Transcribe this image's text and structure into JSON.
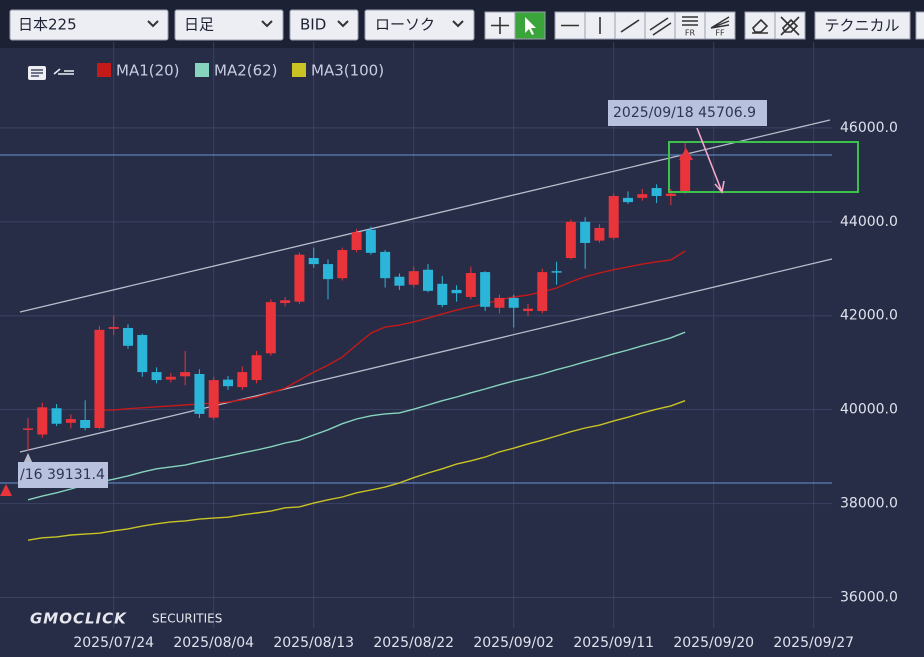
{
  "toolbar": {
    "symbol": "日本225",
    "period": "日足",
    "side": "BID",
    "chart_type": "ローソク",
    "fr": "FR",
    "ff": "FF",
    "technical": "テクニカル"
  },
  "watermark": {
    "brand": "GMOCLICK",
    "sub": "SECURITIES"
  },
  "chart_data": {
    "type": "candlestick",
    "categories": [
      "",
      "",
      "",
      "",
      "",
      "",
      "2025/07/24",
      "",
      "",
      "",
      "",
      "",
      "",
      "2025/08/04",
      "",
      "",
      "",
      "",
      "",
      "",
      "2025/08/13",
      "",
      "",
      "",
      "",
      "",
      "",
      "2025/08/22",
      "",
      "",
      "",
      "",
      "",
      "",
      "2025/09/02",
      "",
      "",
      "",
      "",
      "",
      "",
      "2025/09/11",
      "",
      "",
      "",
      "",
      "",
      "",
      "2025/09/20",
      "",
      "",
      "",
      "",
      "",
      "",
      "2025/09/27"
    ],
    "open": [
      39570,
      39470,
      40030,
      39720,
      39780,
      39610,
      41720,
      41740,
      41590,
      40800,
      40640,
      40710,
      40760,
      39830,
      40640,
      40480,
      40630,
      41200,
      42270,
      42300,
      43230,
      43100,
      42800,
      43400,
      43830,
      43360,
      42830,
      42660,
      42980,
      42680,
      42550,
      42400,
      42930,
      42170,
      42380,
      42100,
      42100,
      42950,
      43230,
      44000,
      43600,
      43660,
      44510,
      44510,
      44720,
      44550,
      44640,
      null,
      null,
      null,
      null,
      null,
      null,
      null,
      null,
      null
    ],
    "high": [
      39820,
      40150,
      40120,
      39900,
      40200,
      41780,
      42000,
      41820,
      41620,
      40900,
      40780,
      41250,
      40860,
      40700,
      40720,
      40920,
      41250,
      42350,
      42400,
      43350,
      43450,
      43200,
      43450,
      43850,
      43900,
      43400,
      42900,
      43050,
      43100,
      42850,
      42650,
      43050,
      42950,
      42450,
      42450,
      42250,
      43000,
      43150,
      44050,
      44100,
      43950,
      44600,
      44650,
      44700,
      44800,
      44700,
      45706.9,
      null,
      null,
      null,
      null,
      null,
      null,
      null,
      null,
      null
    ],
    "low": [
      39131.4,
      39400,
      39650,
      39600,
      39560,
      39580,
      41590,
      41300,
      40700,
      40560,
      40580,
      40520,
      39820,
      39780,
      40420,
      40420,
      40560,
      41150,
      42200,
      42250,
      43020,
      42350,
      42750,
      43350,
      43300,
      42600,
      42550,
      42600,
      42500,
      42180,
      42300,
      42350,
      42100,
      42050,
      41750,
      42000,
      42050,
      42660,
      43200,
      43000,
      43550,
      43620,
      44380,
      44450,
      44400,
      44350,
      44600,
      null,
      null,
      null,
      null,
      null,
      null,
      null,
      null,
      null
    ],
    "close": [
      39600,
      40050,
      39700,
      39800,
      39610,
      41700,
      41760,
      41360,
      40800,
      40630,
      40700,
      40800,
      39910,
      40630,
      40500,
      40800,
      41160,
      42290,
      42330,
      43300,
      43100,
      42780,
      43400,
      43780,
      43340,
      42800,
      42640,
      42950,
      42530,
      42230,
      42480,
      42910,
      42190,
      42380,
      42170,
      42150,
      42930,
      42930,
      44000,
      43550,
      43870,
      44550,
      44420,
      44590,
      44550,
      44600,
      45420,
      null,
      null,
      null,
      null,
      null,
      null,
      null,
      null,
      null
    ],
    "up_color": "#e8343a",
    "down_color": "#2bb5d8",
    "series": [
      {
        "name": "MA1(20)",
        "color": "#c41a1a",
        "values": [
          null,
          null,
          null,
          null,
          null,
          39990,
          39990,
          40020,
          40040,
          40060,
          40080,
          40100,
          40120,
          40140,
          40160,
          40210,
          40270,
          40360,
          40460,
          40630,
          40800,
          40950,
          41120,
          41380,
          41630,
          41760,
          41800,
          41870,
          41950,
          42040,
          42120,
          42190,
          42250,
          42340,
          42400,
          42440,
          42510,
          42590,
          42720,
          42830,
          42910,
          42980,
          43040,
          43100,
          43150,
          43190,
          43380,
          null,
          null,
          null,
          null,
          null,
          null,
          null,
          null,
          null
        ]
      },
      {
        "name": "MA2(62)",
        "color": "#86d4bd",
        "values": [
          38080,
          38160,
          38230,
          38310,
          38400,
          38460,
          38520,
          38590,
          38670,
          38740,
          38780,
          38820,
          38890,
          38950,
          39010,
          39080,
          39140,
          39210,
          39290,
          39350,
          39460,
          39570,
          39700,
          39800,
          39870,
          39910,
          39930,
          40010,
          40100,
          40190,
          40270,
          40360,
          40440,
          40530,
          40610,
          40680,
          40760,
          40850,
          40930,
          41020,
          41100,
          41190,
          41270,
          41360,
          41440,
          41530,
          41650,
          null,
          null,
          null,
          null,
          null,
          null,
          null,
          null,
          null
        ]
      },
      {
        "name": "MA3(100)",
        "color": "#c9c424",
        "values": [
          37220,
          37270,
          37290,
          37330,
          37350,
          37370,
          37420,
          37460,
          37520,
          37570,
          37610,
          37630,
          37670,
          37690,
          37710,
          37760,
          37800,
          37840,
          37910,
          37930,
          38010,
          38080,
          38140,
          38230,
          38290,
          38350,
          38440,
          38550,
          38650,
          38740,
          38840,
          38910,
          38990,
          39100,
          39180,
          39270,
          39350,
          39440,
          39530,
          39610,
          39670,
          39760,
          39840,
          39930,
          40010,
          40080,
          40190,
          null,
          null,
          null,
          null,
          null,
          null,
          null,
          null,
          null
        ]
      }
    ],
    "annotations": [
      "2025/09/18 45706.9",
      "/16 39131.4"
    ],
    "ylim": [
      35350,
      47830
    ],
    "yticks": [
      {
        "value": 36000,
        "label": "36000.0"
      },
      {
        "value": 38000,
        "label": "38000.0"
      },
      {
        "value": 40000,
        "label": "40000.0"
      },
      {
        "value": 42000,
        "label": "42000.0"
      },
      {
        "value": 44000,
        "label": "44000.0"
      },
      {
        "value": 46000,
        "label": "46000.0"
      }
    ],
    "grid": true
  }
}
